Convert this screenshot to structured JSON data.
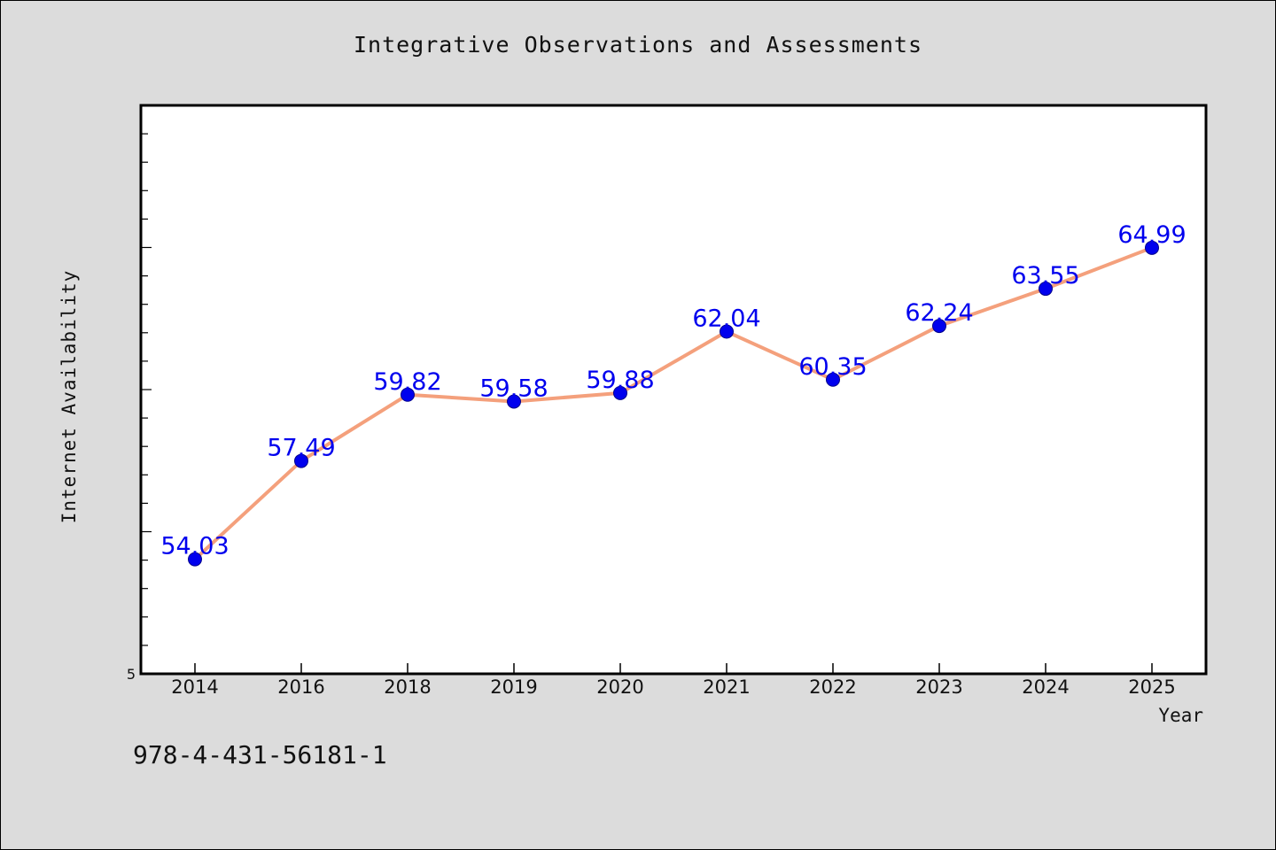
{
  "chart_data": {
    "type": "line",
    "title": "Integrative Observations and Assessments",
    "xlabel": "Year",
    "ylabel": "Internet Availability",
    "categories": [
      "2014",
      "2016",
      "2018",
      "2019",
      "2020",
      "2021",
      "2022",
      "2023",
      "2024",
      "2025"
    ],
    "series": [
      {
        "values": [
          54.03,
          57.49,
          59.82,
          59.58,
          59.88,
          62.04,
          60.35,
          62.24,
          63.55,
          64.99
        ]
      }
    ],
    "data_labels": [
      "54.03",
      "57.49",
      "59.82",
      "59.58",
      "59.88",
      "62.04",
      "60.35",
      "62.24",
      "63.55",
      "64.99"
    ],
    "y_tick_labels": [
      "5"
    ],
    "ylim": [
      50.0,
      70.0
    ],
    "grid": false,
    "colors": {
      "line": "#f4a07c",
      "marker": "#0000ee",
      "label": "#0000ee",
      "background": "#dcdcdc",
      "plot_background": "#ffffff"
    }
  },
  "footnote": "978-4-431-56181-1"
}
